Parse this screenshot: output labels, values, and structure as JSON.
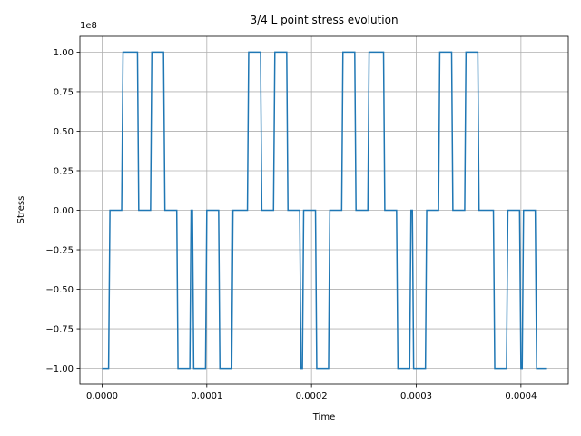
{
  "chart_data": {
    "type": "line",
    "title": "3/4 L point stress evolution",
    "xlabel": "Time",
    "ylabel": "Stress",
    "y_multiplier_label": "1e8",
    "xlim": [
      -2.12e-05,
      0.0004452
    ],
    "ylim": [
      -110000000.0,
      110000000.0
    ],
    "x_ticks": [
      0,
      0.0001,
      0.0002,
      0.0003,
      0.0004
    ],
    "x_tick_labels": [
      "0.0000",
      "0.0001",
      "0.0002",
      "0.0003",
      "0.0004"
    ],
    "y_ticks": [
      -100000000.0,
      -75000000.0,
      -50000000.0,
      -25000000.0,
      0,
      25000000.0,
      50000000.0,
      75000000.0,
      100000000.0
    ],
    "y_tick_labels": [
      "−1.00",
      "−0.75",
      "−0.50",
      "−0.25",
      "0.00",
      "0.25",
      "0.50",
      "0.75",
      "1.00"
    ],
    "grid": true,
    "series": [
      {
        "color": "#1f77b4",
        "x": [
          0,
          6.2e-06,
          7.5e-06,
          1.87e-05,
          2e-05,
          3.38e-05,
          3.5e-05,
          4.63e-05,
          4.75e-05,
          5.87e-05,
          6e-05,
          7.13e-05,
          7.25e-05,
          8.38e-05,
          8.5e-05,
          8.63e-05,
          8.75e-05,
          9.88e-05,
          0.0001,
          0.0001113,
          0.0001125,
          0.0001238,
          0.000125,
          0.0001388,
          0.00014,
          0.0001513,
          0.0001525,
          0.0001637,
          0.000165,
          0.0001763,
          0.0001775,
          0.0001887,
          0.00019,
          0.0001913,
          0.0001925,
          0.0002038,
          0.000205,
          0.0002163,
          0.0002175,
          0.0002288,
          0.00023,
          0.0002413,
          0.0002425,
          0.0002538,
          0.000255,
          0.0002688,
          0.00027,
          0.0002812,
          0.0002825,
          0.0002937,
          0.000295,
          0.0002963,
          0.0002975,
          0.0003088,
          0.00031,
          0.0003213,
          0.0003225,
          0.0003338,
          0.000335,
          0.0003463,
          0.0003475,
          0.0003588,
          0.00036,
          0.0003737,
          0.000375,
          0.0003862,
          0.0003875,
          0.0003987,
          0.0004,
          0.0004012,
          0.0004025,
          0.0004137,
          0.000415,
          0.000424
        ],
        "y": [
          -100000000.0,
          -100000000.0,
          0,
          0,
          100000000.0,
          100000000.0,
          0,
          0,
          100000000.0,
          100000000.0,
          0,
          0,
          -100000000.0,
          -100000000.0,
          0,
          0,
          -100000000.0,
          -100000000.0,
          0,
          0,
          -100000000.0,
          -100000000.0,
          0,
          0,
          100000000.0,
          100000000.0,
          0,
          0,
          100000000.0,
          100000000.0,
          0,
          0,
          -100000000.0,
          -100000000.0,
          0,
          0,
          -100000000.0,
          -100000000.0,
          0,
          0,
          100000000.0,
          100000000.0,
          0,
          0,
          100000000.0,
          100000000.0,
          0,
          0,
          -100000000.0,
          -100000000.0,
          0,
          0,
          -100000000.0,
          -100000000.0,
          0,
          0,
          100000000.0,
          100000000.0,
          0,
          0,
          100000000.0,
          100000000.0,
          0,
          0,
          -100000000.0,
          -100000000.0,
          0,
          0,
          -100000000.0,
          -100000000.0,
          0,
          0,
          -100000000.0,
          -100000000.0
        ]
      }
    ]
  }
}
